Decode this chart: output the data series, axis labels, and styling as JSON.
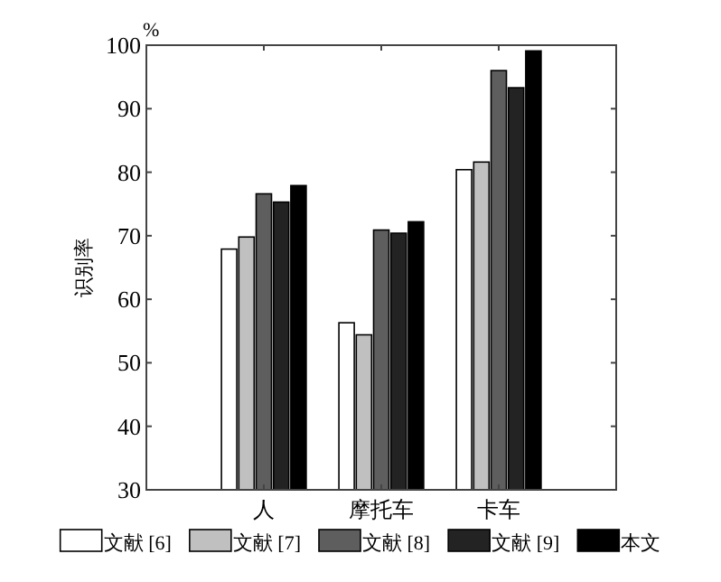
{
  "chart_data": {
    "type": "bar",
    "ylabel": "识别率",
    "annotations": [
      "%"
    ],
    "categories": [
      "人",
      "摩托车",
      "卡车"
    ],
    "series": [
      {
        "name": "文献 [6]",
        "color": "#ffffff",
        "values": [
          67.9,
          56.3,
          80.4
        ]
      },
      {
        "name": "文献 [7]",
        "color": "#c0c0c0",
        "values": [
          69.8,
          54.4,
          81.6
        ]
      },
      {
        "name": "文献 [8]",
        "color": "#5e5e5e",
        "values": [
          76.6,
          70.9,
          96.0
        ]
      },
      {
        "name": "文献 [9]",
        "color": "#232323",
        "values": [
          75.3,
          70.4,
          93.3
        ]
      },
      {
        "name": "本文",
        "color": "#000000",
        "values": [
          77.9,
          72.2,
          99.1
        ]
      }
    ],
    "ylim": [
      30,
      100
    ],
    "yticks": [
      30,
      40,
      50,
      60,
      70,
      80,
      90,
      100
    ],
    "grid": false,
    "legend": "bottom"
  }
}
